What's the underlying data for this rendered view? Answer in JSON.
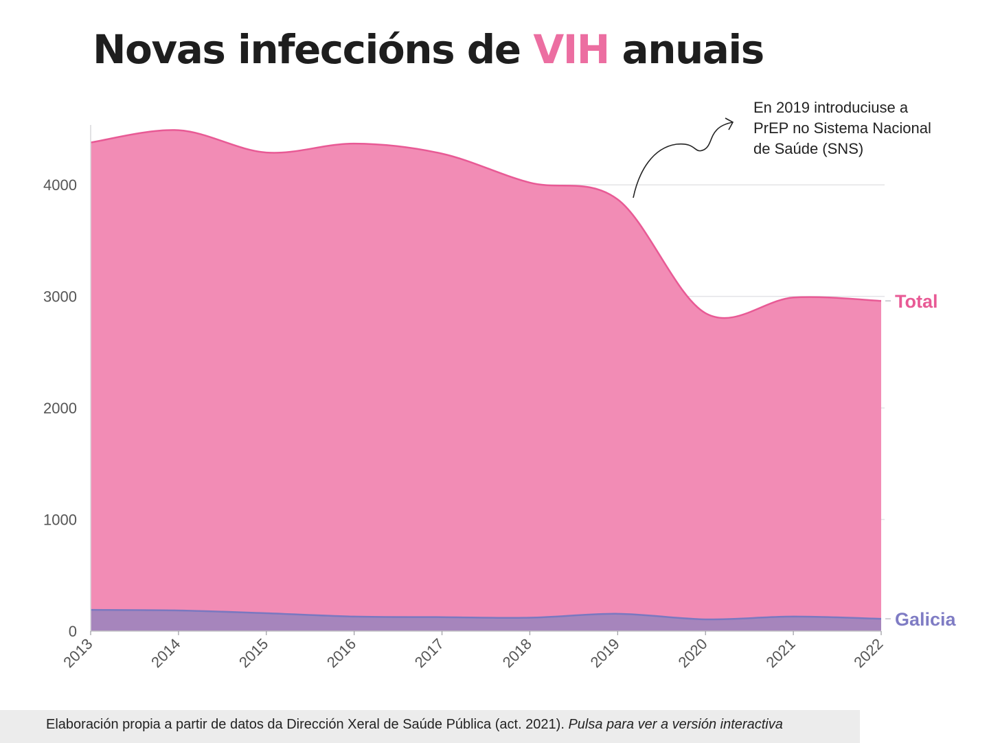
{
  "title": {
    "before": "Novas infeccións de ",
    "highlight": "VIH",
    "after": " anuais",
    "highlight_color": "#ec6ea1"
  },
  "annotation": {
    "lines": [
      "En 2019 introduciuse a",
      "PrEP no Sistema Nacional",
      "de Saúde (SNS)"
    ]
  },
  "footer": {
    "text": "Elaboración propia a partir de datos da Dirección Xeral de Saúde Pública (act. 2021). ",
    "link": "Pulsa para ver a versión interactiva"
  },
  "chart_data": {
    "type": "area",
    "x": [
      "2013",
      "2014",
      "2015",
      "2016",
      "2017",
      "2018",
      "2019",
      "2020",
      "2021",
      "2022"
    ],
    "ylim": [
      0,
      4500
    ],
    "yticks": [
      0,
      1000,
      2000,
      3000,
      4000
    ],
    "grid": true,
    "legend": "direct labels at right end of each series",
    "series": [
      {
        "name": "Total",
        "values": [
          4380,
          4490,
          4290,
          4370,
          4280,
          4020,
          3870,
          2850,
          2990,
          2960
        ],
        "line_color": "#e85a95",
        "fill_color": "#f28cb5"
      },
      {
        "name": "Galicia",
        "values": [
          190,
          185,
          160,
          130,
          125,
          120,
          155,
          105,
          130,
          110
        ],
        "line_color": "#7a78c0",
        "fill_color": "#a685bc",
        "label_color": "#7f7cc4"
      }
    ]
  }
}
